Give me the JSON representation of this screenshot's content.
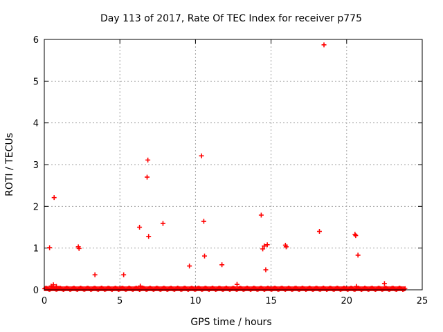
{
  "chart_data": {
    "type": "scatter",
    "title": "Day 113 of 2017, Rate Of TEC Index for receiver p775",
    "xlabel": "GPS time / hours",
    "ylabel": "ROTI / TECUs",
    "xlim": [
      0,
      25
    ],
    "ylim": [
      0,
      6
    ],
    "xticks": [
      "0",
      "5",
      "10",
      "15",
      "20",
      "25"
    ],
    "yticks": [
      "0",
      "1",
      "2",
      "3",
      "4",
      "5",
      "6"
    ],
    "grid": true,
    "marker": "plus",
    "series_color": "#ff0000",
    "baseline_band": {
      "x_start": 0.0,
      "x_end": 23.9,
      "y_max": 0.05
    },
    "points": [
      {
        "x": 0.35,
        "y": 1.01
      },
      {
        "x": 0.65,
        "y": 2.21
      },
      {
        "x": 0.45,
        "y": 0.09
      },
      {
        "x": 0.6,
        "y": 0.12
      },
      {
        "x": 0.8,
        "y": 0.08
      },
      {
        "x": 2.25,
        "y": 1.03
      },
      {
        "x": 2.3,
        "y": 0.99
      },
      {
        "x": 3.35,
        "y": 0.36
      },
      {
        "x": 5.25,
        "y": 0.36
      },
      {
        "x": 6.3,
        "y": 1.5
      },
      {
        "x": 6.35,
        "y": 0.09
      },
      {
        "x": 6.8,
        "y": 2.7
      },
      {
        "x": 6.85,
        "y": 3.11
      },
      {
        "x": 6.9,
        "y": 1.28
      },
      {
        "x": 7.85,
        "y": 1.59
      },
      {
        "x": 9.6,
        "y": 0.57
      },
      {
        "x": 10.4,
        "y": 3.21
      },
      {
        "x": 10.55,
        "y": 1.64
      },
      {
        "x": 10.6,
        "y": 0.81
      },
      {
        "x": 11.75,
        "y": 0.6
      },
      {
        "x": 12.75,
        "y": 0.13
      },
      {
        "x": 14.35,
        "y": 1.79
      },
      {
        "x": 14.45,
        "y": 0.98
      },
      {
        "x": 14.55,
        "y": 1.05
      },
      {
        "x": 14.65,
        "y": 0.48
      },
      {
        "x": 14.75,
        "y": 1.08
      },
      {
        "x": 15.95,
        "y": 1.07
      },
      {
        "x": 16.0,
        "y": 1.03
      },
      {
        "x": 18.2,
        "y": 1.4
      },
      {
        "x": 18.5,
        "y": 5.87
      },
      {
        "x": 20.55,
        "y": 1.33
      },
      {
        "x": 20.6,
        "y": 1.3
      },
      {
        "x": 20.65,
        "y": 0.08
      },
      {
        "x": 20.75,
        "y": 0.83
      },
      {
        "x": 22.5,
        "y": 0.15
      }
    ]
  }
}
